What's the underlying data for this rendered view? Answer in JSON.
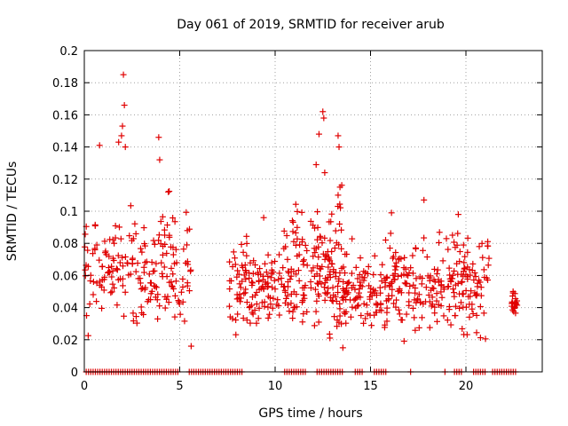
{
  "chart_data": {
    "type": "scatter",
    "title": "Day 061 of 2019, SRMTID for receiver arub",
    "xlabel": "GPS time / hours",
    "ylabel": "SRMTID / TECUs",
    "xlim": [
      0,
      24
    ],
    "ylim": [
      0,
      0.2
    ],
    "xticks": [
      0,
      5,
      10,
      15,
      20
    ],
    "xtick_labels": [
      "0",
      "5",
      "10",
      "15",
      "20"
    ],
    "yticks": [
      0,
      0.02,
      0.04,
      0.06,
      0.08,
      0.1,
      0.12,
      0.14,
      0.16,
      0.18,
      0.2
    ],
    "ytick_labels": [
      "0",
      "0.02",
      "0.04",
      "0.06",
      "0.08",
      "0.1",
      "0.12",
      "0.14",
      "0.16",
      "0.18",
      "0.2"
    ],
    "grid": true,
    "marker": "+",
    "color": "#e00000",
    "segments": [
      {
        "start": 0.0,
        "end": 5.6,
        "min": 0.02,
        "max": 0.115,
        "density": 200
      },
      {
        "start": 7.6,
        "end": 10.4,
        "min": 0.02,
        "max": 0.09,
        "density": 120
      },
      {
        "start": 10.4,
        "end": 12.0,
        "min": 0.02,
        "max": 0.11,
        "density": 75
      },
      {
        "start": 12.0,
        "end": 13.5,
        "min": 0.015,
        "max": 0.13,
        "density": 100
      },
      {
        "start": 13.5,
        "end": 15.6,
        "min": 0.02,
        "max": 0.085,
        "density": 90
      },
      {
        "start": 15.6,
        "end": 21.3,
        "min": 0.015,
        "max": 0.1,
        "density": 240
      },
      {
        "start": 22.4,
        "end": 22.7,
        "min": 0.033,
        "max": 0.057,
        "density": 22
      }
    ],
    "peaks": [
      {
        "x": 2.05,
        "y": 0.185
      },
      {
        "x": 2.1,
        "y": 0.166
      },
      {
        "x": 2.0,
        "y": 0.153
      },
      {
        "x": 1.95,
        "y": 0.147
      },
      {
        "x": 2.15,
        "y": 0.14
      },
      {
        "x": 1.8,
        "y": 0.143
      },
      {
        "x": 0.8,
        "y": 0.141
      },
      {
        "x": 3.9,
        "y": 0.146
      },
      {
        "x": 3.95,
        "y": 0.132
      },
      {
        "x": 4.4,
        "y": 0.112
      },
      {
        "x": 12.5,
        "y": 0.162
      },
      {
        "x": 12.55,
        "y": 0.158
      },
      {
        "x": 12.3,
        "y": 0.148
      },
      {
        "x": 12.15,
        "y": 0.129
      },
      {
        "x": 12.6,
        "y": 0.124
      },
      {
        "x": 13.3,
        "y": 0.147
      },
      {
        "x": 13.35,
        "y": 0.14
      },
      {
        "x": 13.4,
        "y": 0.115
      },
      {
        "x": 13.3,
        "y": 0.11
      },
      {
        "x": 17.8,
        "y": 0.107
      },
      {
        "x": 19.6,
        "y": 0.098
      },
      {
        "x": 9.4,
        "y": 0.096
      },
      {
        "x": 16.1,
        "y": 0.099
      },
      {
        "x": 20.7,
        "y": 0.078
      },
      {
        "x": 5.6,
        "y": 0.016
      },
      {
        "x": 13.55,
        "y": 0.015
      }
    ],
    "zero_segments": [
      [
        0.1,
        5.0
      ],
      [
        5.5,
        8.3
      ],
      [
        10.5,
        11.6
      ],
      [
        12.2,
        13.6
      ],
      [
        14.2,
        14.6
      ],
      [
        15.2,
        15.9
      ],
      [
        17.1,
        17.2
      ],
      [
        18.9,
        19.0
      ],
      [
        19.4,
        19.8
      ],
      [
        20.4,
        21.0
      ],
      [
        21.4,
        22.6
      ]
    ],
    "zero_step": 0.12
  }
}
